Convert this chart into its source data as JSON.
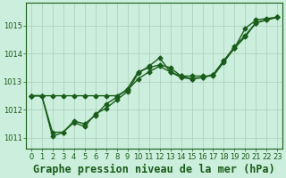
{
  "background_color": "#cceedd",
  "grid_color": "#aaccbb",
  "line_color": "#1a5c1a",
  "xlabel": "Graphe pression niveau de la mer (hPa)",
  "ylim": [
    1010.6,
    1015.8
  ],
  "xlim": [
    -0.5,
    23.5
  ],
  "yticks": [
    1011,
    1012,
    1013,
    1014,
    1015
  ],
  "xticks": [
    0,
    1,
    2,
    3,
    4,
    5,
    6,
    7,
    8,
    9,
    10,
    11,
    12,
    13,
    14,
    15,
    16,
    17,
    18,
    19,
    20,
    21,
    22,
    23
  ],
  "series": [
    [
      1012.5,
      1012.5,
      1012.5,
      1012.5,
      1012.5,
      1012.5,
      1012.5,
      1012.5,
      1012.5,
      1012.7,
      1013.1,
      1013.35,
      1013.55,
      1013.35,
      1013.2,
      1013.2,
      1013.2,
      1013.2,
      1013.7,
      1014.2,
      1014.9,
      1015.2,
      1015.25,
      1015.3
    ],
    [
      1012.5,
      1012.5,
      1011.05,
      1011.2,
      1011.55,
      1011.4,
      1011.85,
      1012.05,
      1012.35,
      1012.65,
      1013.3,
      1013.55,
      1013.85,
      1013.35,
      1013.15,
      1013.1,
      1013.15,
      1013.25,
      1013.75,
      1014.25,
      1014.65,
      1015.1,
      1015.2,
      1015.3
    ],
    [
      1012.5,
      1012.5,
      1011.2,
      1011.2,
      1011.6,
      1011.5,
      1011.8,
      1012.2,
      1012.45,
      1012.75,
      1013.35,
      1013.5,
      1013.6,
      1013.5,
      1013.2,
      1013.1,
      1013.15,
      1013.25,
      1013.75,
      1014.2,
      1014.6,
      1015.1,
      1015.2,
      1015.3
    ]
  ],
  "marker": "D",
  "markersize": 2.5,
  "linewidth": 1.0,
  "tick_fontsize": 6.0,
  "xlabel_fontsize": 8.5
}
